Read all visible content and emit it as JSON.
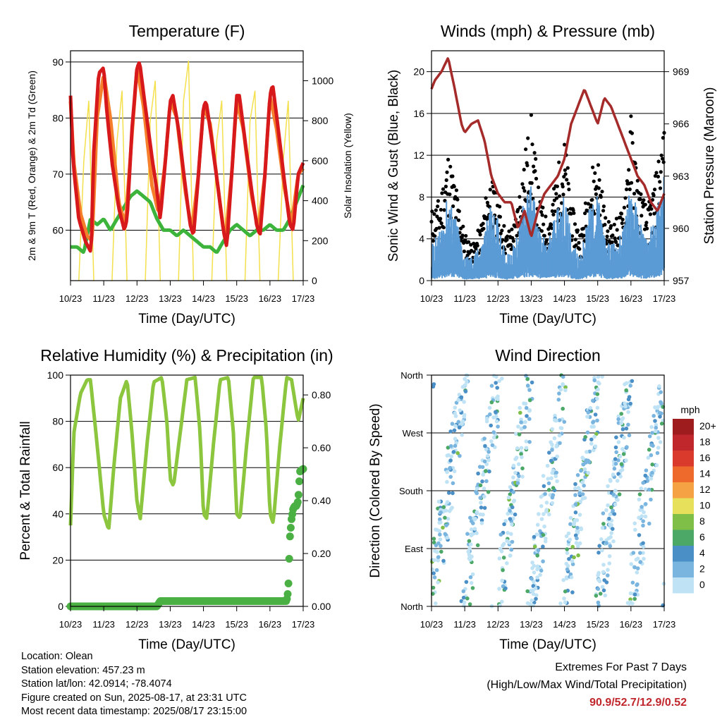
{
  "chart_data": [
    {
      "type": "line",
      "title": "Temperature (F)",
      "xlabel": "Time (Day/UTC)",
      "ylabel": "2m & 9m T (Red, Orange) & 2m Td (Green)",
      "y2label": "Solar Insolation (Yellow)",
      "x_ticks": [
        "10/23",
        "11/23",
        "12/23",
        "13/23",
        "14/23",
        "15/23",
        "16/23",
        "17/23"
      ],
      "ylim": [
        51,
        92
      ],
      "y_ticks": [
        60,
        70,
        80,
        90
      ],
      "y2lim": [
        0,
        1150
      ],
      "y2_ticks": [
        0,
        200,
        400,
        600,
        800,
        1000
      ],
      "grid": true,
      "series": [
        {
          "color": "#d7191c",
          "x": [
            0.0,
            0.08,
            0.25,
            0.45,
            0.62,
            0.7,
            0.85,
            1.0,
            1.08,
            1.25,
            1.45,
            1.62,
            1.7,
            1.85,
            2.0,
            2.08,
            2.25,
            2.45,
            2.6,
            2.7,
            2.85,
            3.0,
            3.08,
            3.25,
            3.45,
            3.6,
            3.7,
            3.85,
            4.0,
            4.08,
            4.25,
            4.45,
            4.6,
            4.7,
            4.85,
            5.0,
            5.08,
            5.25,
            5.45,
            5.6,
            5.7,
            5.85,
            6.0,
            6.08,
            6.25,
            6.45,
            6.6,
            6.7,
            6.85,
            7.0
          ],
          "values": [
            84,
            72,
            62,
            58,
            56,
            74,
            88,
            89,
            82,
            72,
            64,
            60,
            62,
            78,
            89,
            90,
            82,
            73,
            67,
            62,
            72,
            83,
            84,
            78,
            68,
            61,
            59,
            70,
            82,
            83,
            76,
            67,
            60,
            57,
            70,
            84,
            84,
            76,
            67,
            61,
            59,
            70,
            84,
            86,
            78,
            68,
            61,
            60,
            70,
            72
          ]
        },
        {
          "color": "#f57f2a",
          "x": [
            0.0,
            0.1,
            0.3,
            0.5,
            0.65,
            0.8,
            1.0,
            1.2,
            1.45,
            1.65,
            1.85,
            2.0,
            2.2,
            2.45,
            2.65,
            2.85,
            3.0,
            3.2,
            3.45,
            3.65,
            3.85,
            4.0,
            4.2,
            4.45,
            4.65,
            4.85,
            5.0,
            5.2,
            5.45,
            5.65,
            5.85,
            6.0,
            6.2,
            6.45,
            6.65,
            6.85,
            7.0
          ],
          "values": [
            83,
            72,
            63,
            59,
            58,
            80,
            88,
            80,
            65,
            61,
            77,
            89,
            82,
            68,
            63,
            72,
            83,
            80,
            67,
            60,
            70,
            82,
            79,
            67,
            58,
            70,
            83,
            78,
            66,
            60,
            70,
            84,
            78,
            67,
            61,
            70,
            71
          ]
        },
        {
          "color": "#3cb43c",
          "x": [
            0.0,
            0.2,
            0.4,
            0.6,
            0.8,
            1.0,
            1.2,
            1.4,
            1.6,
            1.8,
            2.0,
            2.2,
            2.4,
            2.6,
            2.8,
            3.0,
            3.2,
            3.4,
            3.6,
            3.8,
            4.0,
            4.2,
            4.4,
            4.6,
            4.8,
            5.0,
            5.2,
            5.4,
            5.6,
            5.8,
            6.0,
            6.2,
            6.4,
            6.6,
            6.8,
            7.0
          ],
          "values": [
            57,
            57,
            56,
            62,
            61,
            62,
            60,
            62,
            64,
            66,
            67,
            66,
            65,
            62,
            60,
            60,
            59,
            60,
            59,
            58,
            57,
            57,
            56,
            58,
            60,
            61,
            60,
            59,
            60,
            60,
            61,
            60,
            60,
            62,
            65,
            68
          ]
        },
        {
          "color": "#f4e04d",
          "kind": "insolation",
          "x": [
            0.25,
            0.4,
            0.55,
            0.7,
            1.25,
            1.4,
            1.55,
            1.7,
            2.25,
            2.4,
            2.55,
            2.7,
            3.25,
            3.4,
            3.55,
            3.7,
            4.25,
            4.4,
            4.55,
            4.7,
            5.25,
            5.4,
            5.55,
            5.7,
            6.25,
            6.4,
            6.55,
            6.7
          ],
          "values": [
            0,
            600,
            900,
            0,
            0,
            700,
            950,
            0,
            0,
            800,
            1000,
            0,
            0,
            900,
            1100,
            0,
            0,
            700,
            900,
            0,
            0,
            800,
            950,
            0,
            0,
            600,
            900,
            0
          ]
        }
      ]
    },
    {
      "type": "scatter",
      "title": "Winds (mph) & Pressure (mb)",
      "xlabel": "Time (Day/UTC)",
      "ylabel": "Sonic Wind & Gust (Blue, Black)",
      "y2label": "Station Pressure (Maroon)",
      "x_ticks": [
        "10/23",
        "11/23",
        "12/23",
        "13/23",
        "14/23",
        "15/23",
        "16/23",
        "17/23"
      ],
      "ylim": [
        0,
        22
      ],
      "y_ticks": [
        0,
        4,
        8,
        12,
        16,
        20
      ],
      "y2lim": [
        957,
        970.2
      ],
      "y2_ticks": [
        957,
        960,
        963,
        966,
        969
      ],
      "grid": true,
      "series": [
        {
          "color": "#000000",
          "kind": "gust-band",
          "x": [
            0.0,
            0.25,
            0.5,
            0.75,
            1.0,
            1.25,
            1.5,
            1.75,
            2.0,
            2.25,
            2.5,
            2.75,
            3.0,
            3.25,
            3.5,
            3.75,
            4.0,
            4.25,
            4.5,
            4.75,
            5.0,
            5.25,
            5.5,
            5.75,
            6.0,
            6.25,
            6.5,
            6.75,
            7.0
          ],
          "values": [
            6,
            7,
            11,
            8,
            4,
            3,
            5,
            9,
            7,
            4,
            5,
            10,
            14,
            7,
            5,
            9,
            12,
            6,
            4,
            9,
            11,
            5,
            5,
            6,
            14,
            8,
            6,
            9,
            14
          ]
        },
        {
          "color": "#5b9bd5",
          "kind": "wind-band",
          "x": [
            0.0,
            0.25,
            0.5,
            0.75,
            1.0,
            1.25,
            1.5,
            1.75,
            2.0,
            2.25,
            2.5,
            2.75,
            3.0,
            3.25,
            3.5,
            3.75,
            4.0,
            4.25,
            4.5,
            4.75,
            5.0,
            5.25,
            5.5,
            5.75,
            6.0,
            6.25,
            6.5,
            6.75,
            7.0
          ],
          "values": [
            3,
            4,
            7,
            5,
            2,
            2,
            3,
            6,
            5,
            2,
            3,
            6,
            8,
            4,
            3,
            6,
            7,
            3,
            2,
            6,
            7,
            3,
            3,
            4,
            8,
            5,
            3,
            6,
            9
          ]
        },
        {
          "color": "#a52a2a",
          "kind": "pressure",
          "x": [
            0.0,
            0.1,
            0.3,
            0.5,
            0.7,
            0.9,
            1.0,
            1.2,
            1.4,
            1.6,
            1.8,
            2.0,
            2.2,
            2.4,
            2.6,
            2.8,
            3.0,
            3.2,
            3.4,
            3.6,
            3.8,
            4.0,
            4.2,
            4.4,
            4.6,
            4.8,
            5.0,
            5.2,
            5.4,
            5.6,
            5.8,
            6.0,
            6.2,
            6.4,
            6.6,
            6.8,
            7.0
          ],
          "values": [
            968,
            968.5,
            969,
            969.8,
            968,
            966,
            965.5,
            966,
            966.2,
            965,
            963,
            962,
            961.5,
            961.5,
            960,
            961,
            959.5,
            961,
            962,
            962.5,
            963,
            964,
            966,
            967,
            968,
            967,
            966,
            967.5,
            967,
            966,
            965,
            964,
            963,
            962.5,
            961.5,
            961,
            962
          ]
        }
      ]
    },
    {
      "type": "line",
      "title": "Relative Humidity (%) & Precipitation (in)",
      "xlabel": "Time (Day/UTC)",
      "ylabel": "Percent & Total Rainfall",
      "x_ticks": [
        "10/23",
        "11/23",
        "12/23",
        "13/23",
        "14/23",
        "15/23",
        "16/23",
        "17/23"
      ],
      "ylim": [
        0,
        100
      ],
      "y_ticks": [
        0,
        20,
        40,
        60,
        80,
        100
      ],
      "y2lim": [
        0,
        0.875
      ],
      "y2_ticks": [
        "0.00",
        "0.20",
        "0.40",
        "0.60",
        "0.80"
      ],
      "grid": true,
      "series": [
        {
          "color": "#8cc63f",
          "kind": "rh",
          "x": [
            0.0,
            0.1,
            0.3,
            0.5,
            0.6,
            0.8,
            1.0,
            1.15,
            1.3,
            1.5,
            1.7,
            1.85,
            2.0,
            2.1,
            2.3,
            2.5,
            2.75,
            2.9,
            3.0,
            3.1,
            3.3,
            3.5,
            3.75,
            3.9,
            4.0,
            4.1,
            4.3,
            4.5,
            4.75,
            4.9,
            5.0,
            5.1,
            5.3,
            5.5,
            5.75,
            5.9,
            6.0,
            6.1,
            6.3,
            6.5,
            6.65,
            6.85,
            7.0
          ],
          "values": [
            35,
            75,
            92,
            98,
            98,
            70,
            40,
            33,
            60,
            90,
            98,
            75,
            45,
            38,
            70,
            97,
            99,
            80,
            55,
            52,
            75,
            98,
            99,
            75,
            40,
            38,
            70,
            98,
            99,
            75,
            40,
            38,
            70,
            99,
            99,
            75,
            40,
            36,
            70,
            99,
            98,
            80,
            90
          ]
        },
        {
          "color": "#4bb043",
          "kind": "precip",
          "x": [
            0.0,
            2.6,
            2.7,
            6.5,
            6.55,
            6.6,
            6.65,
            6.7,
            6.75,
            6.8,
            6.85,
            6.9,
            7.0
          ],
          "values": [
            0.0,
            0.0,
            0.02,
            0.02,
            0.06,
            0.26,
            0.33,
            0.37,
            0.38,
            0.38,
            0.4,
            0.51,
            0.52
          ]
        }
      ]
    },
    {
      "type": "scatter",
      "title": "Wind Direction",
      "xlabel": "Time (Day/UTC)",
      "ylabel": "Direction (Colored By Speed)",
      "x_ticks": [
        "10/23",
        "11/23",
        "12/23",
        "13/23",
        "14/23",
        "15/23",
        "16/23",
        "17/23"
      ],
      "y_ticks": [
        "North",
        "East",
        "South",
        "West",
        "North"
      ],
      "legend": {
        "title": "mph",
        "labels": [
          "20+",
          "18",
          "16",
          "14",
          "12",
          "10",
          "8",
          "6",
          "4",
          "2",
          "0"
        ],
        "colors": [
          "#9e1b1e",
          "#c0272d",
          "#d93a2b",
          "#ee6a2c",
          "#f5a244",
          "#e6e05a",
          "#7fbf48",
          "#4ba867",
          "#4b8fc7",
          "#7ab5e0",
          "#bfe3f5"
        ],
        "placement": "right"
      }
    }
  ],
  "station_info": {
    "location": "Location: Olean",
    "elevation": "Station elevation: 457.23 m",
    "latlon": "Station lat/lon: 42.0914; -78.4074",
    "created": "Figure created on Sun, 2025-08-17, at 23:31 UTC",
    "latest": "Most recent data timestamp: 2025/08/17 23:15:00"
  },
  "extremes": {
    "heading": "Extremes For Past 7 Days",
    "subheading": "(High/Low/Max Wind/Total Precipitation)",
    "values": "90.9/52.7/12.9/0.52"
  }
}
